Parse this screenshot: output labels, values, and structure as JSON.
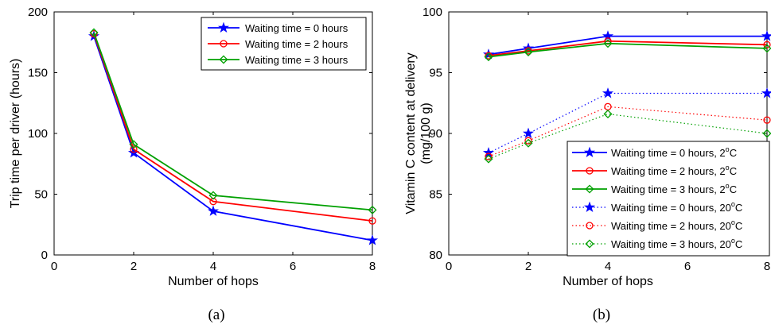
{
  "chart_data": [
    {
      "type": "line",
      "caption": "(a)",
      "xlabel": "Number of hops",
      "ylabel": "Trip time per driver (hours)",
      "xlim": [
        0,
        8
      ],
      "ylim": [
        0,
        200
      ],
      "xticks": [
        0,
        2,
        4,
        6,
        8
      ],
      "yticks": [
        0,
        50,
        100,
        150,
        200
      ],
      "legend_position": "top-right",
      "grid": false,
      "x": [
        1,
        2,
        4,
        8
      ],
      "series": [
        {
          "name": "Waiting time = 0 hours",
          "color": "#0000ff",
          "marker": "star",
          "style": "solid",
          "values": [
            180,
            84,
            36,
            12
          ]
        },
        {
          "name": "Waiting time = 2 hours",
          "color": "#ff0000",
          "marker": "circle",
          "style": "solid",
          "values": [
            182,
            87,
            44,
            28
          ]
        },
        {
          "name": "Waiting time = 3 hours",
          "color": "#00a000",
          "marker": "diamond",
          "style": "solid",
          "values": [
            183,
            91,
            49,
            37
          ]
        }
      ]
    },
    {
      "type": "line",
      "caption": "(b)",
      "xlabel": "Number of hops",
      "ylabel": [
        "Vitamin C content at delivery",
        "(mg/100 g)"
      ],
      "xlim": [
        0,
        8
      ],
      "ylim": [
        80,
        100
      ],
      "xticks": [
        0,
        2,
        4,
        6,
        8
      ],
      "yticks": [
        80,
        85,
        90,
        95,
        100
      ],
      "legend_position": "bottom-right",
      "grid": false,
      "x": [
        1,
        2,
        4,
        8
      ],
      "series": [
        {
          "name": "Waiting time = 0 hours, 2",
          "unit": "C",
          "unit_sup": "o",
          "color": "#0000ff",
          "marker": "star",
          "style": "solid",
          "values": [
            96.5,
            97.0,
            98.0,
            98.0
          ]
        },
        {
          "name": "Waiting time = 2 hours, 2",
          "unit": "C",
          "unit_sup": "o",
          "color": "#ff0000",
          "marker": "circle",
          "style": "solid",
          "values": [
            96.4,
            96.8,
            97.6,
            97.3
          ]
        },
        {
          "name": "Waiting time = 3 hours, 2",
          "unit": "C",
          "unit_sup": "o",
          "color": "#00a000",
          "marker": "diamond",
          "style": "solid",
          "values": [
            96.3,
            96.7,
            97.4,
            97.0
          ]
        },
        {
          "name": "Waiting time = 0 hours, 20",
          "unit": "C",
          "unit_sup": "o",
          "color": "#0000ff",
          "marker": "star",
          "style": "dotted",
          "values": [
            88.4,
            90.0,
            93.3,
            93.3
          ]
        },
        {
          "name": "Waiting time = 2 hours, 20",
          "unit": "C",
          "unit_sup": "o",
          "color": "#ff0000",
          "marker": "circle",
          "style": "dotted",
          "values": [
            88.1,
            89.4,
            92.2,
            91.1
          ]
        },
        {
          "name": "Waiting time = 3 hours, 20",
          "unit": "C",
          "unit_sup": "o",
          "color": "#00a000",
          "marker": "diamond",
          "style": "dotted",
          "values": [
            87.9,
            89.2,
            91.6,
            90.0
          ]
        }
      ]
    }
  ]
}
